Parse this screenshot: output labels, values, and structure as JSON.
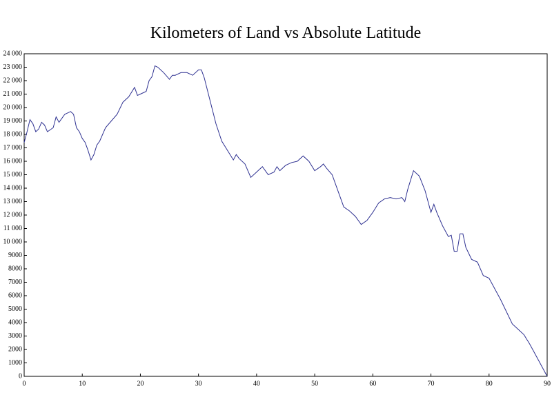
{
  "chart_data": {
    "type": "line",
    "title": "Kilometers of Land vs Absolute Latitude",
    "x": [
      0,
      0.5,
      1,
      1.5,
      2,
      2.5,
      3,
      3.5,
      4,
      5,
      5.5,
      6,
      6.5,
      7,
      7.5,
      8,
      8.5,
      9,
      9.5,
      10,
      10.5,
      11,
      11.5,
      12,
      12.5,
      13,
      14,
      15,
      16,
      17,
      18,
      19,
      19.5,
      20,
      21,
      21.5,
      22,
      22.5,
      23,
      24,
      25,
      25.5,
      26,
      27,
      28,
      29,
      30,
      30.5,
      31,
      32,
      33,
      34,
      35,
      36,
      36.5,
      37,
      38,
      39,
      40,
      41,
      42,
      43,
      43.5,
      44,
      45,
      46,
      47,
      48,
      49,
      50,
      51,
      51.5,
      52,
      53,
      54,
      55,
      56,
      57,
      58,
      59,
      60,
      61,
      62,
      63,
      64,
      65,
      65.5,
      66,
      67,
      68,
      69,
      70,
      70.5,
      71,
      72,
      73,
      73.5,
      74,
      74.5,
      75,
      75.5,
      76,
      77,
      78,
      79,
      80,
      81,
      82,
      83,
      84,
      85,
      86,
      87,
      88,
      89,
      90
    ],
    "series": [
      {
        "color": "#2e3191",
        "values": [
          17400,
          18200,
          19100,
          18800,
          18200,
          18400,
          18900,
          18700,
          18200,
          18500,
          19300,
          18900,
          19200,
          19500,
          19600,
          19700,
          19500,
          18500,
          18200,
          17700,
          17400,
          16800,
          16100,
          16500,
          17200,
          17500,
          18500,
          19000,
          19500,
          20400,
          20800,
          21500,
          20900,
          21000,
          21200,
          22000,
          22300,
          23100,
          23000,
          22600,
          22100,
          22400,
          22400,
          22600,
          22600,
          22400,
          22800,
          22800,
          22200,
          20500,
          18800,
          17500,
          16800,
          16100,
          16500,
          16200,
          15800,
          14800,
          15200,
          15600,
          15000,
          15200,
          15600,
          15300,
          15700,
          15900,
          16000,
          16400,
          16000,
          15300,
          15600,
          15800,
          15500,
          15000,
          13800,
          12600,
          12300,
          11900,
          11300,
          11600,
          12200,
          12900,
          13200,
          13300,
          13200,
          13300,
          13000,
          13900,
          15300,
          14900,
          13800,
          12200,
          12800,
          12200,
          11200,
          10400,
          10500,
          9300,
          9300,
          10600,
          10600,
          9600,
          8700,
          8500,
          7500,
          7300,
          6500,
          5700,
          4800,
          3900,
          3500,
          3100,
          2400,
          1600,
          800,
          0
        ]
      }
    ],
    "xlim": [
      0,
      90
    ],
    "xticks": [
      0,
      10,
      20,
      30,
      40,
      50,
      60,
      70,
      80,
      90
    ],
    "ylim": [
      0,
      24000
    ],
    "yticks": [
      0,
      1000,
      2000,
      3000,
      4000,
      5000,
      6000,
      7000,
      8000,
      9000,
      {
        "value": 10000,
        "label": "10 000"
      },
      {
        "value": 11000,
        "label": "11 000"
      },
      {
        "value": 12000,
        "label": "12 000"
      },
      {
        "value": 13000,
        "label": "13 000"
      },
      {
        "value": 14000,
        "label": "14 000"
      },
      {
        "value": 15000,
        "label": "15 000"
      },
      {
        "value": 16000,
        "label": "16 000"
      },
      {
        "value": 17000,
        "label": "17 000"
      },
      {
        "value": 18000,
        "label": "18 000"
      },
      {
        "value": 19000,
        "label": "19 000"
      },
      {
        "value": 20000,
        "label": "20 000"
      },
      {
        "value": 21000,
        "label": "21 000"
      },
      {
        "value": 22000,
        "label": "22 000"
      },
      {
        "value": 23000,
        "label": "23 000"
      },
      {
        "value": 24000,
        "label": "24 000"
      }
    ],
    "grid": false
  }
}
